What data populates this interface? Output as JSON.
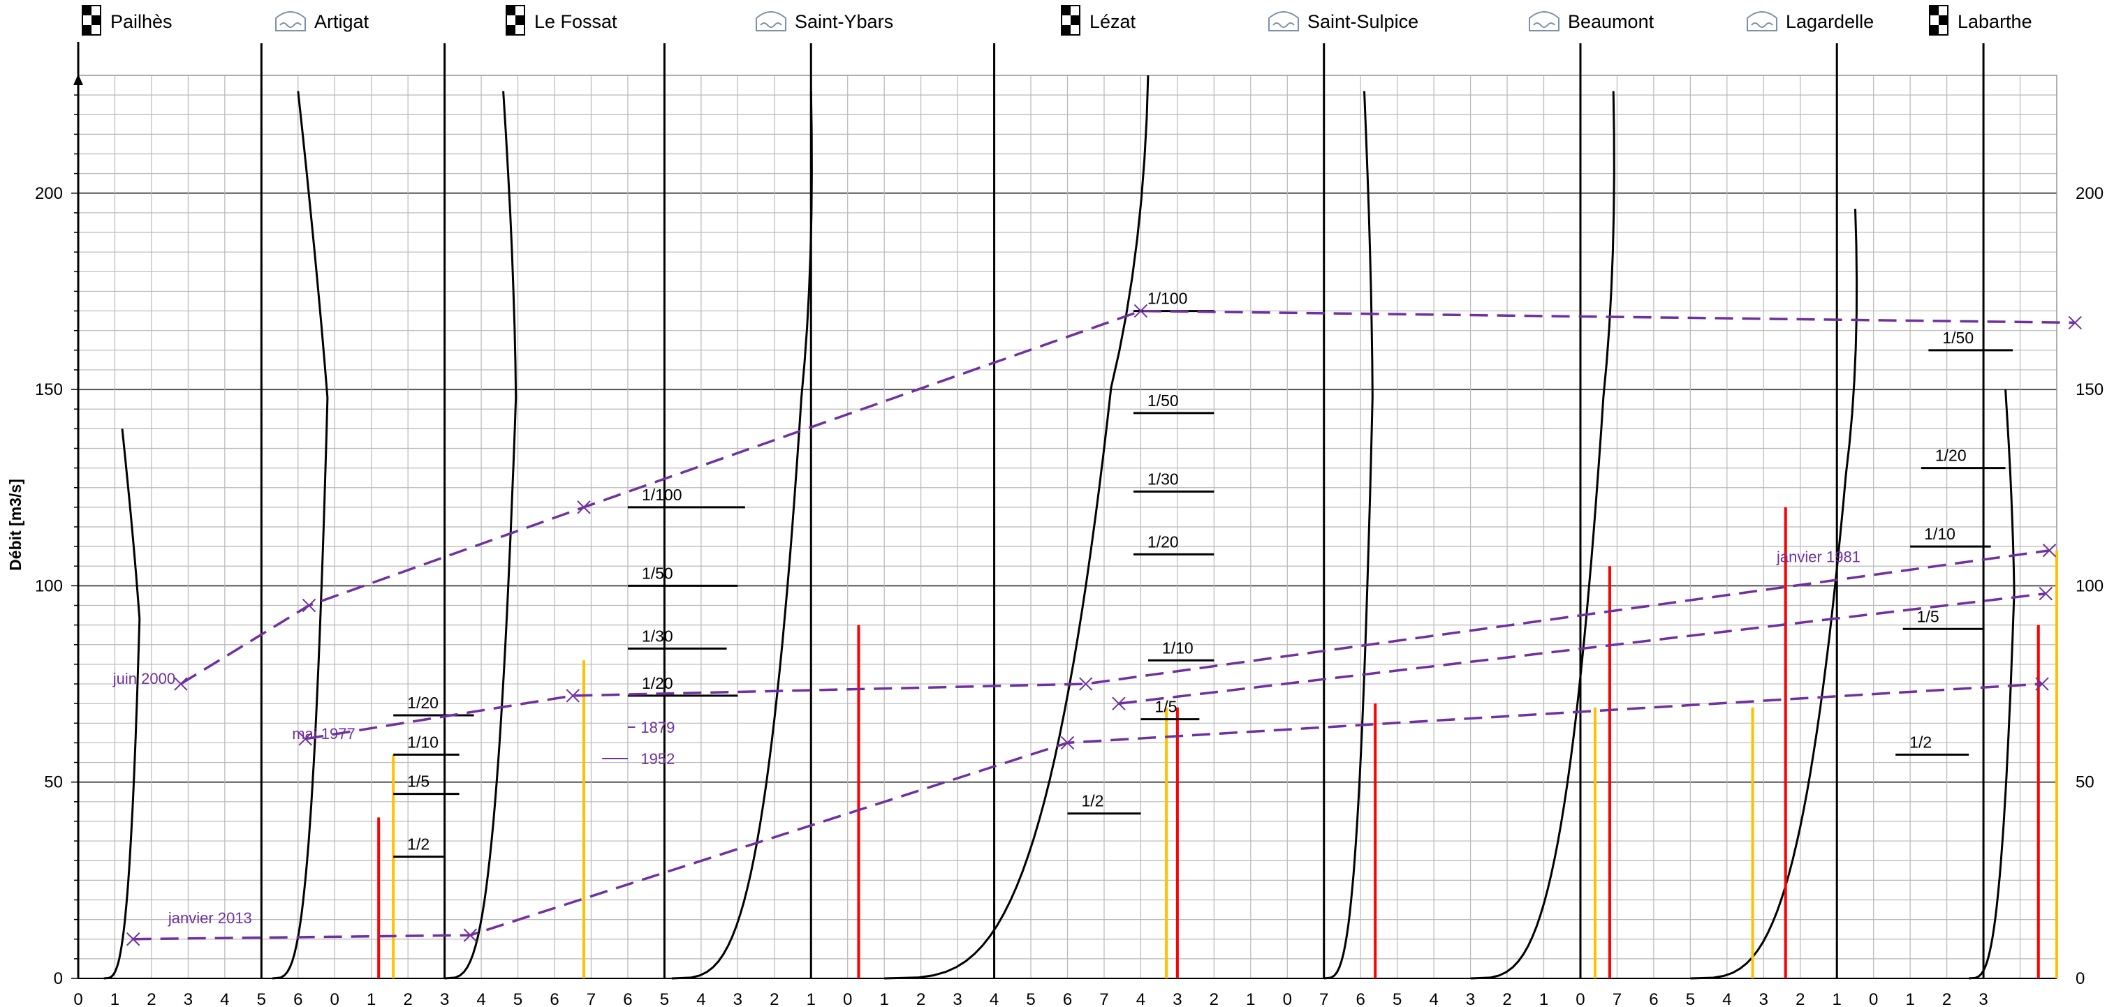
{
  "chart_data": {
    "type": "line",
    "ylabel": "Débit [m3/s]",
    "ylim": [
      0,
      230
    ],
    "y_ticks": [
      0,
      50,
      100,
      150,
      200
    ],
    "x_tick_labels": [
      "0",
      "1",
      "2",
      "3",
      "4",
      "5",
      "6",
      "0",
      "1",
      "2",
      "3",
      "4",
      "5",
      "6",
      "7",
      "6",
      "5",
      "4",
      "3",
      "2",
      "1",
      "0",
      "1",
      "2",
      "3",
      "4",
      "5",
      "6",
      "7",
      "4",
      "3",
      "2",
      "1",
      "0",
      "7",
      "6",
      "5",
      "4",
      "3",
      "2",
      "1",
      "0",
      "7",
      "6",
      "5",
      "4",
      "3",
      "2",
      "1",
      "0",
      "1",
      "2",
      "3"
    ],
    "stations": [
      {
        "name": "Pailhès",
        "kind": "station"
      },
      {
        "name": "Artigat",
        "kind": "bridge"
      },
      {
        "name": "Le Fossat",
        "kind": "station"
      },
      {
        "name": "Saint-Ybars",
        "kind": "bridge"
      },
      {
        "name": "Lézat",
        "kind": "station"
      },
      {
        "name": "Saint-Sulpice",
        "kind": "bridge"
      },
      {
        "name": "Beaumont",
        "kind": "bridge"
      },
      {
        "name": "Lagardelle",
        "kind": "bridge"
      },
      {
        "name": "Labarthe",
        "kind": "station"
      }
    ],
    "return_levels": [
      {
        "label": "1/2",
        "y": 31
      },
      {
        "label": "1/5",
        "y": 47
      },
      {
        "label": "1/10",
        "y": 57
      },
      {
        "label": "1/20",
        "y": 67
      },
      {
        "label": "1/20",
        "y": 72
      },
      {
        "label": "1/30",
        "y": 84
      },
      {
        "label": "1/50",
        "y": 100
      },
      {
        "label": "1/100",
        "y": 120
      },
      {
        "label": "1/2",
        "y": 42
      },
      {
        "label": "1/5",
        "y": 66
      },
      {
        "label": "1/10",
        "y": 81
      },
      {
        "label": "1/20",
        "y": 108
      },
      {
        "label": "1/30",
        "y": 124
      },
      {
        "label": "1/50",
        "y": 144
      },
      {
        "label": "1/100",
        "y": 170
      },
      {
        "label": "1/2",
        "y": 57
      },
      {
        "label": "1/5",
        "y": 89
      },
      {
        "label": "1/10",
        "y": 110
      },
      {
        "label": "1/20",
        "y": 130
      },
      {
        "label": "1/50",
        "y": 160
      }
    ],
    "historical_marks": [
      {
        "label": "1879",
        "y": 64
      },
      {
        "label": "1952",
        "y": 56
      }
    ],
    "events": [
      {
        "name": "juin 2000",
        "points": [
          75,
          95,
          120,
          170,
          167
        ]
      },
      {
        "name": "mai 1977",
        "points": [
          61,
          72,
          75,
          109
        ]
      },
      {
        "name": "janvier 1981",
        "points": [
          70,
          98
        ]
      },
      {
        "name": "janvier 2013",
        "points": [
          10,
          11,
          60,
          75
        ]
      }
    ],
    "rating_curve_flows": [
      140,
      226,
      226,
      226,
      230,
      226,
      226,
      196,
      150
    ],
    "current_flows": [
      {
        "color": "#FF0000",
        "values": [
          41,
          90,
          69,
          70,
          105,
          120,
          90
        ]
      },
      {
        "color": "#FFC000",
        "values": [
          57,
          81,
          69,
          69,
          69,
          109
        ]
      }
    ],
    "colors": {
      "event": "#7030A0",
      "current_red": "#FF0000",
      "current_orange": "#FFC000",
      "curve": "#000000",
      "grid": "#b3b3b3"
    }
  }
}
